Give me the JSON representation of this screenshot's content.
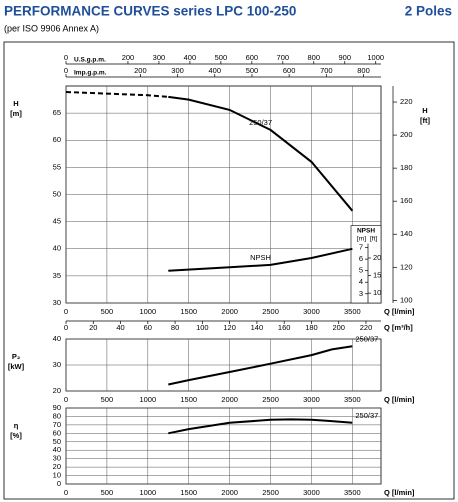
{
  "header": {
    "title": "PERFORMANCE CURVES series LPC 100-250",
    "poles": "2 Poles",
    "subtitle": "(per ISO 9906 Annex A)"
  },
  "chart_data": [
    {
      "type": "line",
      "xlabel": "Q [l/min]",
      "ylabel": [
        "H",
        "[m]"
      ],
      "xlim": [
        0,
        3850
      ],
      "xticks": [
        0,
        500,
        1000,
        1500,
        2000,
        2500,
        3000,
        3500
      ],
      "ylim": [
        30,
        70
      ],
      "yticks": [
        30,
        35,
        40,
        45,
        50,
        55,
        60,
        65
      ],
      "grid": true,
      "y2label": [
        "H",
        "[ft]"
      ],
      "y2lim": [
        98.4,
        229.7
      ],
      "y2ticks": [
        100,
        120,
        140,
        160,
        180,
        200,
        220
      ],
      "top_axes": [
        {
          "label": "U.S.g.p.m.",
          "lim": [
            0,
            1017
          ],
          "ticks": [
            0,
            200,
            300,
            400,
            500,
            600,
            700,
            800,
            900,
            1000
          ]
        },
        {
          "label": "Imp.g.p.m.",
          "lim": [
            0,
            847
          ],
          "ticks": [
            0,
            200,
            300,
            400,
            500,
            600,
            700,
            800
          ]
        }
      ],
      "bottom_axis": {
        "label": "Q [m³/h]",
        "lim": [
          0,
          231
        ],
        "ticks": [
          0,
          20,
          40,
          60,
          80,
          100,
          120,
          140,
          160,
          180,
          200,
          220
        ]
      },
      "npsh_axes": {
        "title": "NPSH",
        "m_label": "[m]",
        "ft_label": "[ft]",
        "m_lim": [
          2.2,
          21
        ],
        "m_ticks": [
          3,
          4,
          5,
          6,
          7
        ],
        "ft_lim": [
          7.2,
          68.9
        ],
        "ft_ticks": [
          10,
          15,
          20
        ]
      },
      "series": [
        {
          "name": "250/37",
          "color": "#000000",
          "x": [
            1250,
            1500,
            2000,
            2500,
            3000,
            3500
          ],
          "values": [
            68.0,
            67.5,
            65.6,
            61.9,
            56.0,
            47.0
          ]
        },
        {
          "color": "#000000",
          "dash": true,
          "x": [
            0,
            500,
            1000,
            1250
          ],
          "values": [
            68.9,
            68.6,
            68.3,
            68.0
          ]
        },
        {
          "name": "NPSH",
          "color": "#000000",
          "axis": "npsh",
          "x": [
            1250,
            2000,
            2500,
            3000,
            3500
          ],
          "values": [
            5.0,
            5.3,
            5.5,
            6.1,
            6.9
          ]
        }
      ]
    },
    {
      "type": "line",
      "xlabel": "Q [l/min]",
      "ylabel": [
        "P₂",
        "[kW]"
      ],
      "xlim": [
        0,
        3850
      ],
      "xticks": [
        0,
        500,
        1000,
        1500,
        2000,
        2500,
        3000,
        3500
      ],
      "ylim": [
        20,
        40
      ],
      "yticks": [
        20,
        30,
        40
      ],
      "grid": true,
      "series": [
        {
          "name": "250/37",
          "color": "#000000",
          "x": [
            1250,
            1500,
            2000,
            2500,
            3000,
            3250,
            3500
          ],
          "values": [
            22.5,
            24.2,
            27.3,
            30.5,
            33.8,
            36.0,
            37.2
          ]
        }
      ]
    },
    {
      "type": "line",
      "xlabel": "Q [l/min]",
      "ylabel": [
        "η",
        "[%]"
      ],
      "xlim": [
        0,
        3850
      ],
      "xticks": [
        0,
        500,
        1000,
        1500,
        2000,
        2500,
        3000,
        3500
      ],
      "ylim": [
        0,
        90
      ],
      "yticks": [
        0,
        10,
        20,
        30,
        40,
        50,
        60,
        70,
        80,
        90
      ],
      "grid": true,
      "series": [
        {
          "name": "250/37",
          "color": "#000000",
          "x": [
            1250,
            1500,
            2000,
            2500,
            2750,
            3000,
            3250,
            3500
          ],
          "values": [
            60,
            65,
            72.5,
            76,
            76.5,
            76,
            74.5,
            72.5
          ]
        }
      ]
    }
  ]
}
